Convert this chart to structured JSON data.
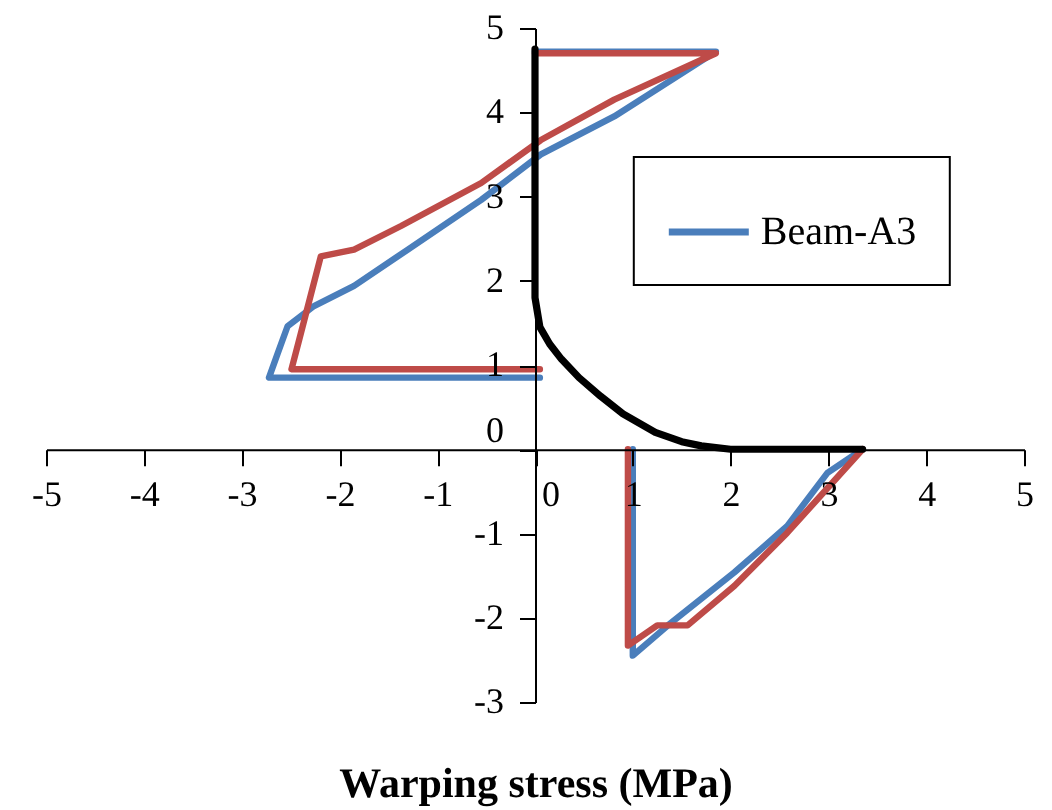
{
  "chart_data": {
    "type": "line",
    "xlabel": "Warping stress (MPa)",
    "xlim": [
      -5,
      5
    ],
    "ylim": [
      -3,
      5
    ],
    "xticks": [
      -5,
      -4,
      -3,
      -2,
      -1,
      0,
      1,
      2,
      3,
      4,
      5
    ],
    "yticks": [
      -3,
      -2,
      -1,
      0,
      1,
      2,
      3,
      4,
      5
    ],
    "grid": false,
    "legend": "right",
    "line_style": "solid",
    "series": [
      {
        "name": "Beam-A3",
        "color": "#4a7ebb",
        "x": [
          0,
          1.85,
          0.81,
          0.06,
          -0.55,
          -1.3,
          -1.85,
          -2.26,
          -2.53,
          -2.63,
          -2.72,
          0.05,
          null,
          1.0,
          1.0,
          1.36,
          2.04,
          2.58,
          2.99,
          3.35
        ],
        "values": [
          4.72,
          4.72,
          3.95,
          3.5,
          2.96,
          2.37,
          1.94,
          1.7,
          1.46,
          1.14,
          0.85,
          0.85,
          null,
          0,
          -2.45,
          -2.09,
          -1.46,
          -0.91,
          -0.28,
          0
        ]
      },
      {
        "color": "#be4b48",
        "x": [
          0,
          1.85,
          0.81,
          0.06,
          -0.55,
          -1.37,
          -1.85,
          -2.19,
          -2.42,
          -2.49,
          0.05,
          null,
          0.95,
          0.95,
          1.25,
          1.56,
          2.04,
          2.58,
          3.35
        ],
        "values": [
          4.7,
          4.7,
          4.15,
          3.67,
          3.16,
          2.65,
          2.37,
          2.29,
          1.26,
          0.95,
          0.95,
          null,
          0,
          -2.33,
          -2.09,
          -2.09,
          -1.62,
          -0.99,
          0
        ]
      },
      {
        "color": "#000000",
        "x": [
          0,
          0,
          0.05,
          0.15,
          0.27,
          0.45,
          0.67,
          0.9,
          1.23,
          1.5,
          1.7,
          2.0,
          3.35
        ],
        "values": [
          4.75,
          1.8,
          1.45,
          1.25,
          1.07,
          0.85,
          0.63,
          0.42,
          0.2,
          0.09,
          0.04,
          0,
          0
        ]
      }
    ]
  }
}
